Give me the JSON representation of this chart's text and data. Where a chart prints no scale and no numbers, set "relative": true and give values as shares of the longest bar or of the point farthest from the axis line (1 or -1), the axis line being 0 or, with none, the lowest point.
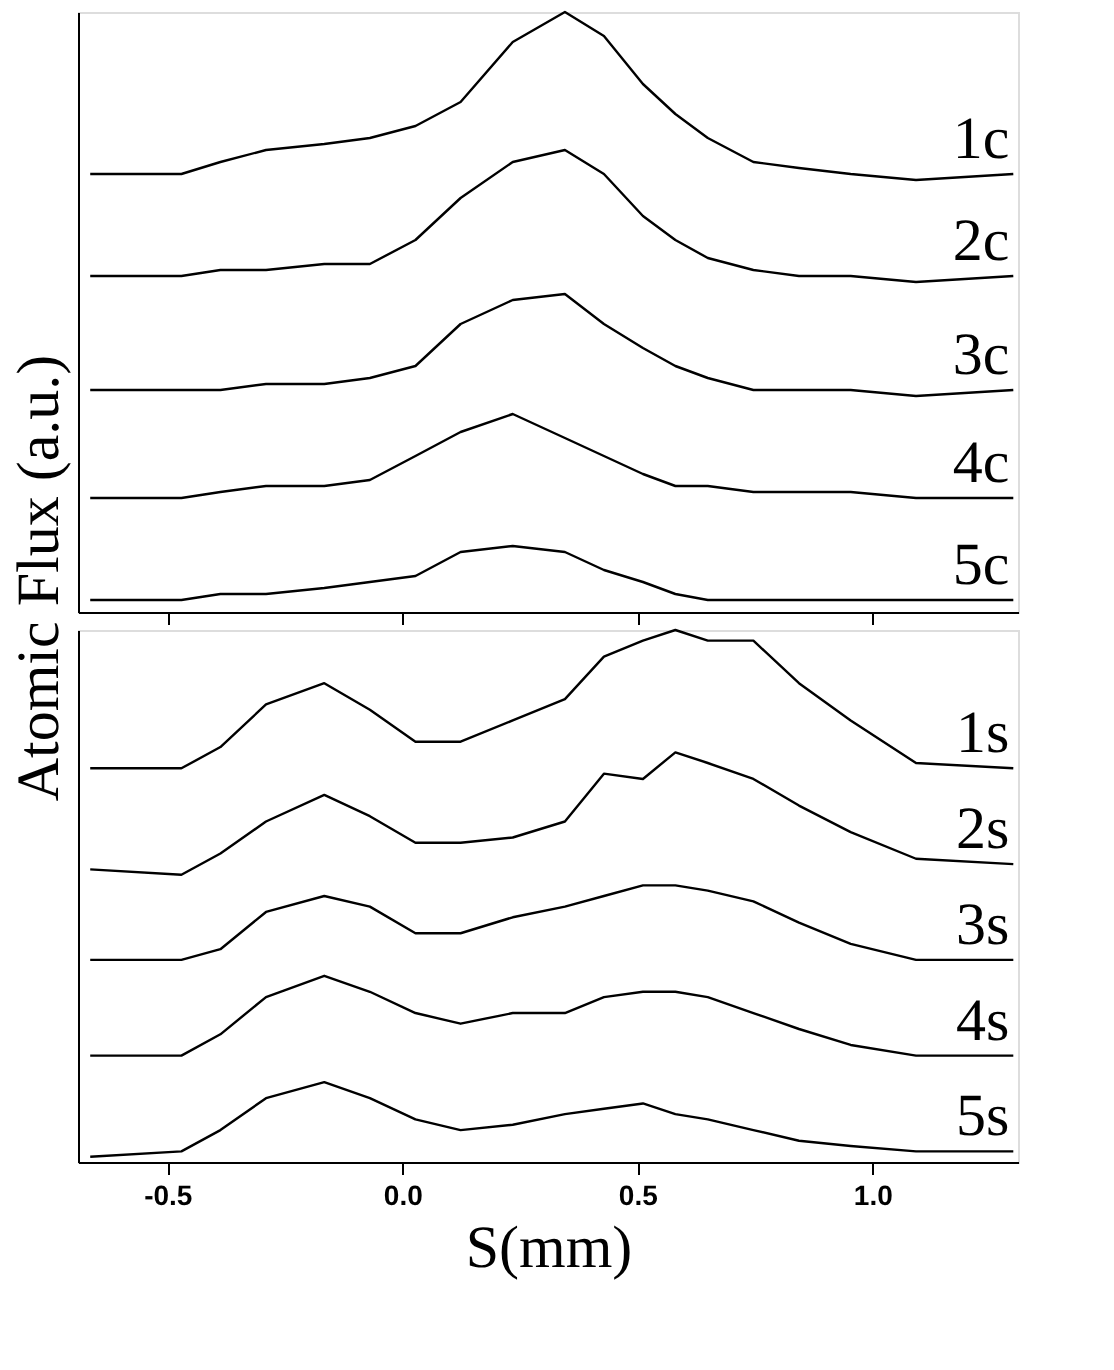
{
  "chart_data": [
    {
      "type": "line",
      "relative": true,
      "ylabel": "Atomic Flux (a.u.)",
      "xlim": [
        -0.69,
        1.31
      ],
      "xticks": [
        {
          "value": -0.5,
          "label": null
        },
        {
          "value": 0,
          "label": null
        },
        {
          "value": 0.5,
          "label": null
        },
        {
          "value": 1.0,
          "label": null
        }
      ],
      "tick_labels": false,
      "grid": false,
      "legend": false,
      "marker": "none",
      "line_style": "solid",
      "x": [
        -0.664,
        -0.47,
        -0.387,
        -0.29,
        -0.166,
        -0.069,
        0.028,
        0.124,
        0.235,
        0.346,
        0.429,
        0.512,
        0.581,
        0.65,
        0.747,
        0.844,
        0.954,
        1.093,
        1.3
      ],
      "series": [
        {
          "name": "1c",
          "color": "#000000",
          "values": [
            0.73,
            0.73,
            0.75,
            0.77,
            0.78,
            0.79,
            0.81,
            0.85,
            0.95,
            1.0,
            0.96,
            0.88,
            0.83,
            0.79,
            0.75,
            0.74,
            0.73,
            0.72,
            0.73
          ]
        },
        {
          "name": "2c",
          "color": "#000000",
          "values": [
            0.56,
            0.56,
            0.57,
            0.57,
            0.58,
            0.58,
            0.62,
            0.69,
            0.75,
            0.77,
            0.73,
            0.66,
            0.62,
            0.59,
            0.57,
            0.56,
            0.56,
            0.55,
            0.56
          ]
        },
        {
          "name": "3c",
          "color": "#000000",
          "values": [
            0.37,
            0.37,
            0.37,
            0.38,
            0.38,
            0.39,
            0.41,
            0.48,
            0.52,
            0.53,
            0.48,
            0.44,
            0.41,
            0.39,
            0.37,
            0.37,
            0.37,
            0.36,
            0.37
          ]
        },
        {
          "name": "4c",
          "color": "#000000",
          "values": [
            0.19,
            0.19,
            0.2,
            0.21,
            0.21,
            0.22,
            0.26,
            0.3,
            0.33,
            0.29,
            0.26,
            0.23,
            0.21,
            0.21,
            0.2,
            0.2,
            0.2,
            0.19,
            0.19
          ]
        },
        {
          "name": "5c",
          "color": "#000000",
          "values": [
            0.02,
            0.02,
            0.03,
            0.03,
            0.04,
            0.05,
            0.06,
            0.1,
            0.11,
            0.1,
            0.07,
            0.05,
            0.03,
            0.02,
            0.02,
            0.02,
            0.02,
            0.02,
            0.02
          ]
        }
      ]
    },
    {
      "type": "line",
      "relative": true,
      "xlabel": "S(mm)",
      "xlim": [
        -0.69,
        1.31
      ],
      "xticks": [
        {
          "value": -0.5,
          "label": "-0.5"
        },
        {
          "value": 0,
          "label": "0.0"
        },
        {
          "value": 0.5,
          "label": "0.5"
        },
        {
          "value": 1.0,
          "label": "1.0"
        }
      ],
      "tick_labels": "x",
      "grid": false,
      "legend": false,
      "marker": "none",
      "line_style": "solid",
      "x": [
        -0.664,
        -0.47,
        -0.387,
        -0.29,
        -0.166,
        -0.069,
        0.028,
        0.124,
        0.235,
        0.346,
        0.429,
        0.512,
        0.581,
        0.65,
        0.747,
        0.844,
        0.954,
        1.093,
        1.3
      ],
      "series": [
        {
          "name": "1s",
          "color": "#000000",
          "values": [
            0.74,
            0.74,
            0.78,
            0.86,
            0.9,
            0.85,
            0.79,
            0.79,
            0.83,
            0.87,
            0.95,
            0.98,
            1.0,
            0.98,
            0.98,
            0.9,
            0.83,
            0.75,
            0.74
          ]
        },
        {
          "name": "2s",
          "color": "#000000",
          "values": [
            0.55,
            0.54,
            0.58,
            0.64,
            0.69,
            0.65,
            0.6,
            0.6,
            0.61,
            0.64,
            0.73,
            0.72,
            0.77,
            0.75,
            0.72,
            0.67,
            0.62,
            0.57,
            0.56
          ]
        },
        {
          "name": "3s",
          "color": "#000000",
          "values": [
            0.38,
            0.38,
            0.4,
            0.47,
            0.5,
            0.48,
            0.43,
            0.43,
            0.46,
            0.48,
            0.5,
            0.52,
            0.52,
            0.51,
            0.49,
            0.45,
            0.41,
            0.38,
            0.38
          ]
        },
        {
          "name": "4s",
          "color": "#000000",
          "values": [
            0.2,
            0.2,
            0.24,
            0.31,
            0.35,
            0.32,
            0.28,
            0.26,
            0.28,
            0.28,
            0.31,
            0.32,
            0.32,
            0.31,
            0.28,
            0.25,
            0.22,
            0.2,
            0.2
          ]
        },
        {
          "name": "5s",
          "color": "#000000",
          "values": [
            0.01,
            0.02,
            0.06,
            0.12,
            0.15,
            0.12,
            0.08,
            0.06,
            0.07,
            0.09,
            0.1,
            0.11,
            0.09,
            0.08,
            0.06,
            0.04,
            0.03,
            0.02,
            0.02
          ]
        }
      ]
    }
  ]
}
